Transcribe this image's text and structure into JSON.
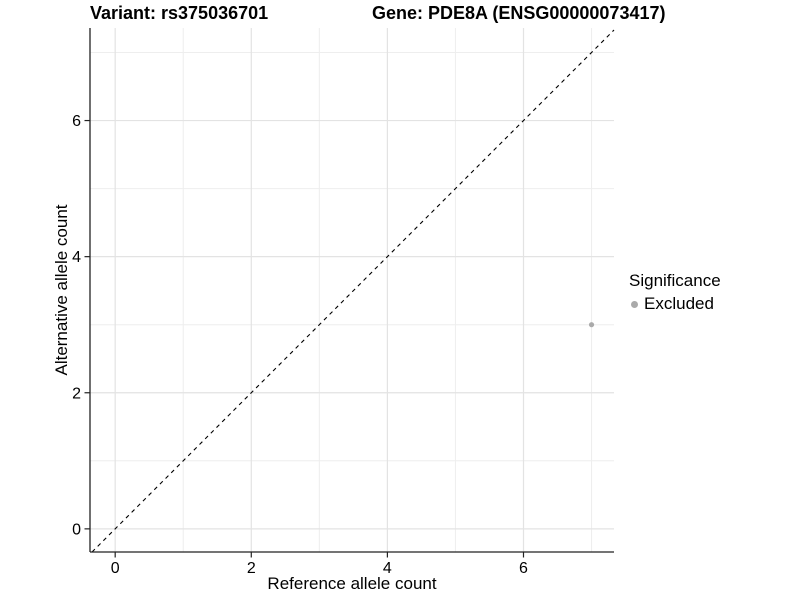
{
  "chart_data": {
    "type": "scatter",
    "titles": {
      "variant": "Variant: rs375036701",
      "gene": "Gene: PDE8A (ENSG00000073417)"
    },
    "xlabel": "Reference allele count",
    "ylabel": "Alternative allele count",
    "xlim": [
      -0.37,
      7.33
    ],
    "ylim": [
      -0.34,
      7.36
    ],
    "xticks": [
      0,
      2,
      4,
      6
    ],
    "yticks": [
      0,
      2,
      4,
      6
    ],
    "xticks_minor": [
      1,
      3,
      5,
      7
    ],
    "yticks_minor": [
      1,
      3,
      5,
      7
    ],
    "grid": "major+minor",
    "points": [
      {
        "x": 7,
        "y": 3,
        "significance": "Excluded",
        "color": "#aaaaaa"
      }
    ],
    "identity_line": {
      "equation": "y = x",
      "style": "dashed",
      "color": "#000000"
    },
    "legend": {
      "title": "Significance",
      "position": "right",
      "items": [
        {
          "label": "Excluded",
          "color": "#aaaaaa"
        }
      ]
    },
    "colors": {
      "background": "#ffffff",
      "grid_major": "#e3e3e3",
      "grid_minor": "#eeeeee",
      "axis_line": "#222222",
      "text": "#000000"
    }
  }
}
